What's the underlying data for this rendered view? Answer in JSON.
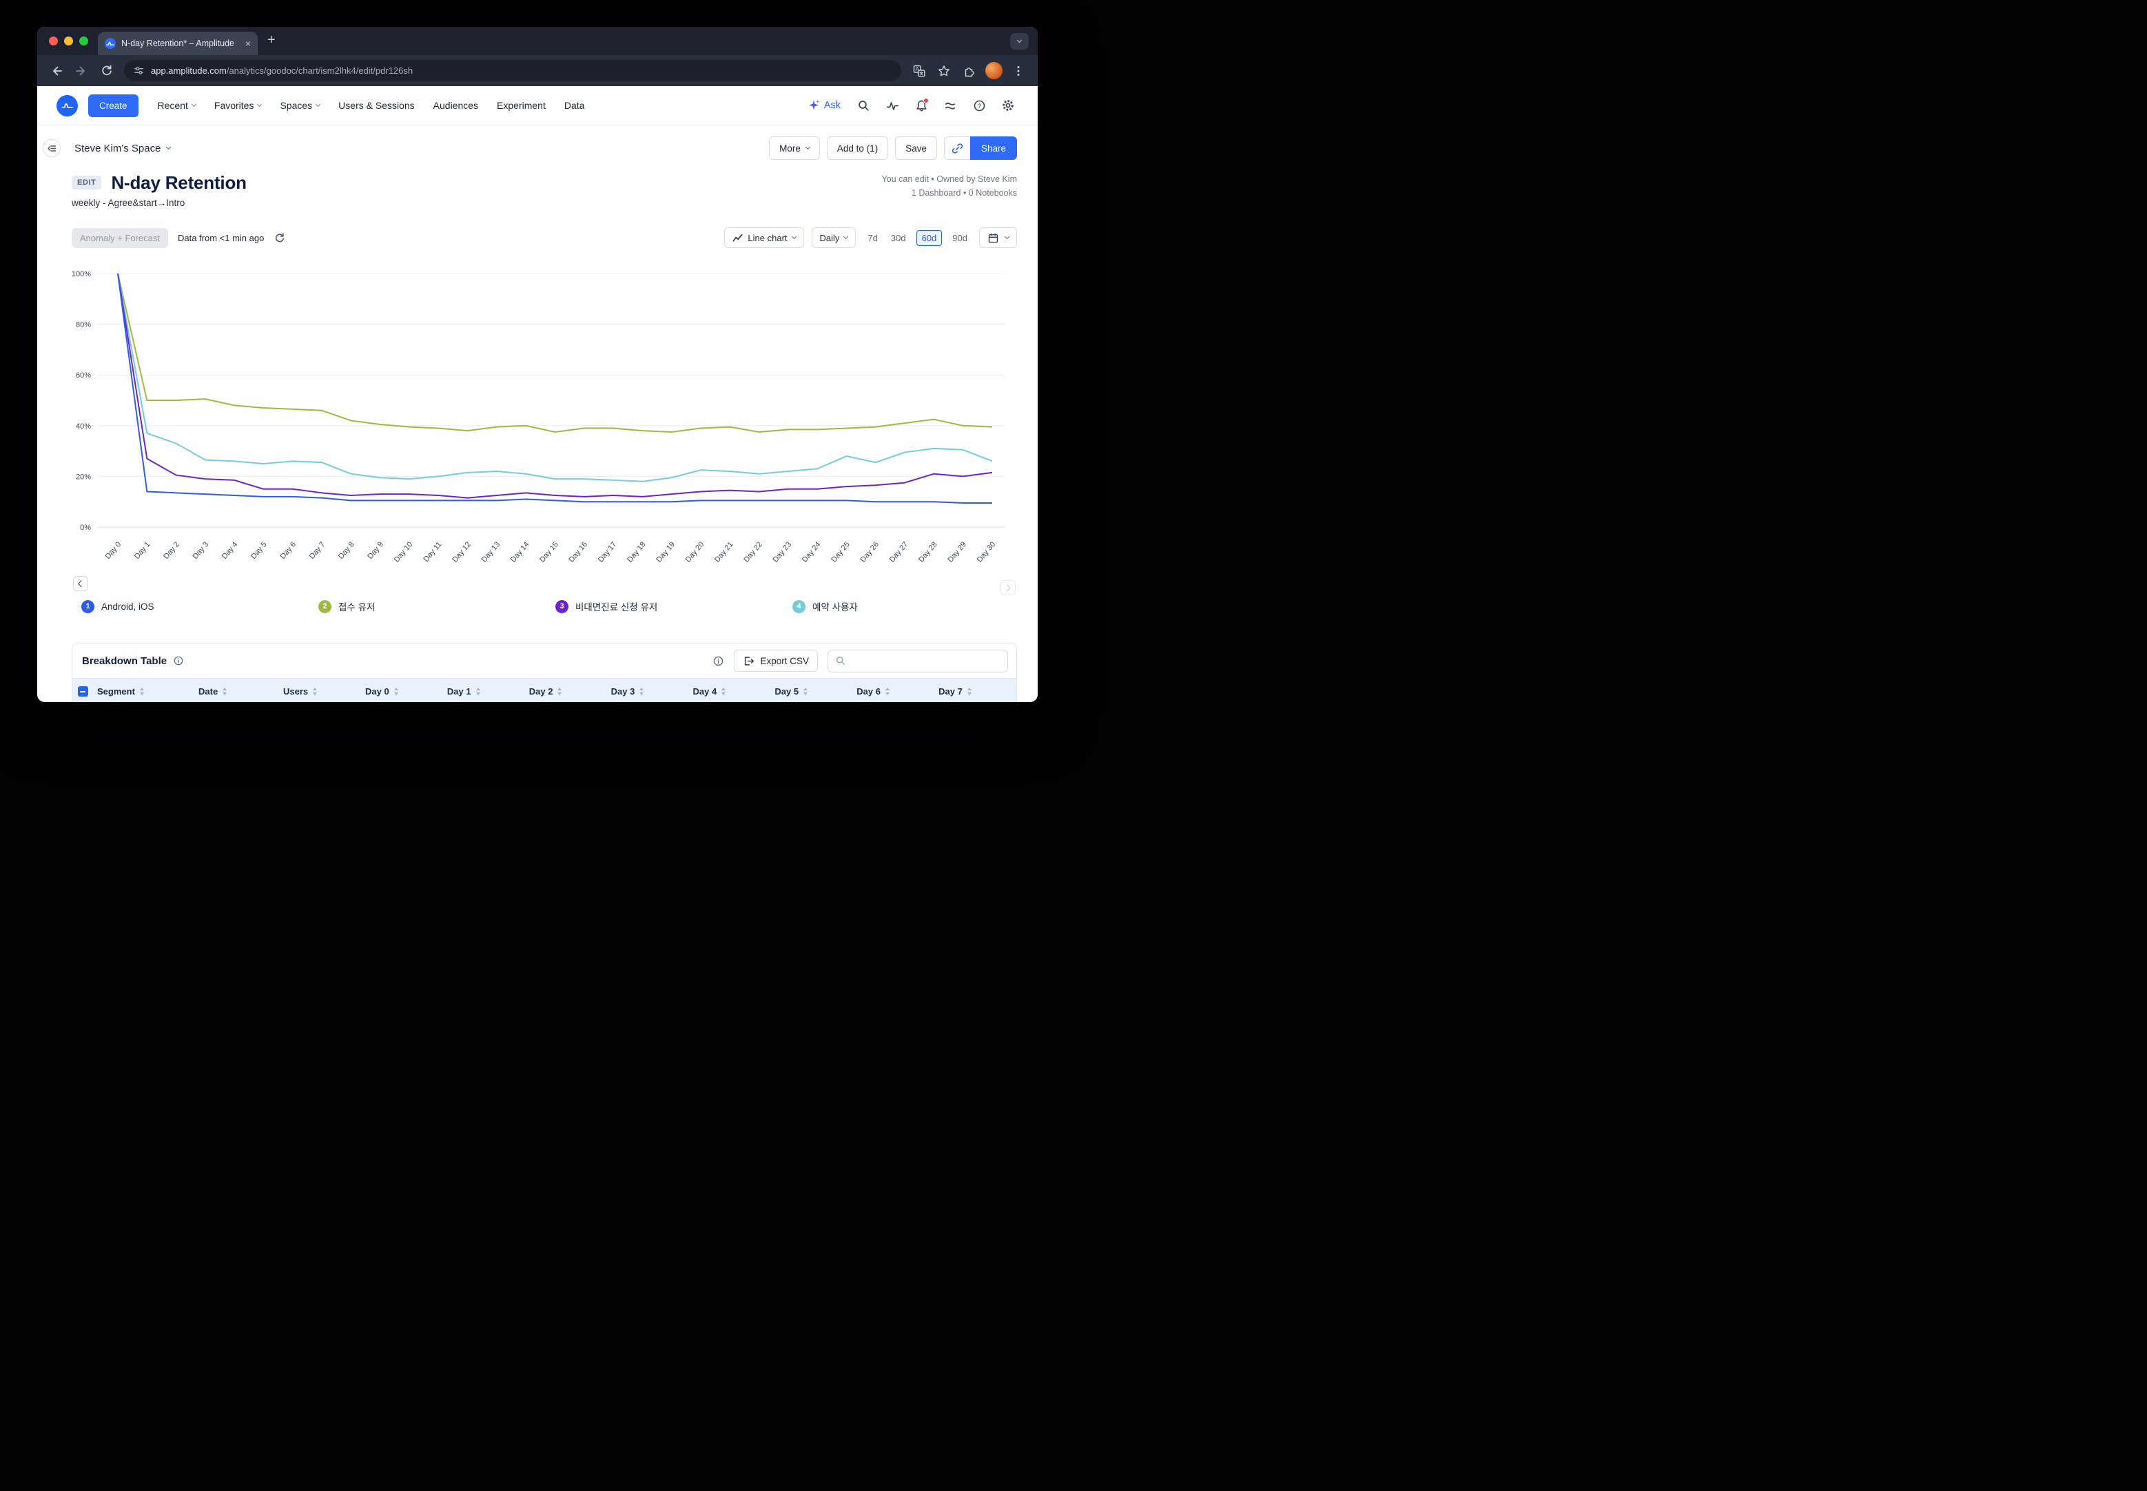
{
  "browser": {
    "tab_title": "N-day Retention* – Amplitude",
    "url_domain": "app.amplitude.com",
    "url_path": "/analytics/goodoc/chart/ism2lhk4/edit/pdr126sh"
  },
  "nav": {
    "create_label": "Create",
    "items": [
      {
        "label": "Recent",
        "dropdown": true
      },
      {
        "label": "Favorites",
        "dropdown": true
      },
      {
        "label": "Spaces",
        "dropdown": true
      },
      {
        "label": "Users & Sessions",
        "dropdown": false
      },
      {
        "label": "Audiences",
        "dropdown": false
      },
      {
        "label": "Experiment",
        "dropdown": false
      },
      {
        "label": "Data",
        "dropdown": false
      }
    ],
    "ask_label": "Ask"
  },
  "toolbar": {
    "space_name": "Steve Kim's Space",
    "more_label": "More",
    "add_to_label": "Add to (1)",
    "save_label": "Save",
    "share_label": "Share"
  },
  "page": {
    "edit_badge": "EDIT",
    "title": "N-day Retention",
    "subtitle": "weekly - Agree&start→Intro",
    "permissions": "You can edit • Owned by Steve Kim",
    "usage": "1 Dashboard • 0 Notebooks"
  },
  "controls": {
    "anomaly_label": "Anomaly + Forecast",
    "freshness": "Data from <1 min ago",
    "chart_type": "Line chart",
    "granularity": "Daily",
    "ranges": [
      "7d",
      "30d",
      "60d",
      "90d"
    ],
    "selected_range": "60d"
  },
  "chart_data": {
    "type": "line",
    "title": "N-day Retention",
    "x": [
      "Day 0",
      "Day 1",
      "Day 2",
      "Day 3",
      "Day 4",
      "Day 5",
      "Day 6",
      "Day 7",
      "Day 8",
      "Day 9",
      "Day 10",
      "Day 11",
      "Day 12",
      "Day 13",
      "Day 14",
      "Day 15",
      "Day 16",
      "Day 17",
      "Day 18",
      "Day 19",
      "Day 20",
      "Day 21",
      "Day 22",
      "Day 23",
      "Day 24",
      "Day 25",
      "Day 26",
      "Day 27",
      "Day 28",
      "Day 29",
      "Day 30"
    ],
    "ylim": [
      0,
      100
    ],
    "yticks": [
      0,
      20,
      40,
      60,
      80,
      100
    ],
    "ytick_suffix": "%",
    "grid": "horizontal",
    "legend_position": "bottom",
    "series": [
      {
        "name": "Android, iOS",
        "color": "#2e5ce6",
        "values": [
          100,
          14,
          13.5,
          13,
          12.5,
          12,
          12,
          11.5,
          10.5,
          10.5,
          10.5,
          10.5,
          10.5,
          10.5,
          11,
          10.5,
          10,
          10,
          10,
          10,
          10.5,
          10.5,
          10.5,
          10.5,
          10.5,
          10.5,
          10,
          10,
          10,
          9.5,
          9.5
        ]
      },
      {
        "name": "접수 유저",
        "color": "#9cba40",
        "values": [
          100,
          50,
          50,
          50.5,
          48,
          47,
          46.5,
          46,
          42,
          40.5,
          39.5,
          39,
          38,
          39.5,
          40,
          37.5,
          39,
          39,
          38,
          37.5,
          39,
          39.5,
          37.5,
          38.5,
          38.5,
          39,
          39.5,
          41,
          42.5,
          40,
          39.5
        ]
      },
      {
        "name": "비대면진료 신청 유저",
        "color": "#6b24c8",
        "values": [
          100,
          27,
          20.5,
          19,
          18.5,
          15,
          15,
          13.5,
          12.5,
          13,
          13,
          12.5,
          11.5,
          12.5,
          13.5,
          12.5,
          12,
          12.5,
          12,
          13,
          14,
          14.5,
          14,
          15,
          15,
          16,
          16.5,
          17.5,
          21,
          20,
          21.5
        ]
      },
      {
        "name": "예약 사용자",
        "color": "#74ccd9",
        "values": [
          100,
          37,
          33,
          26.5,
          26,
          25,
          26,
          25.5,
          21,
          19.5,
          19,
          20,
          21.5,
          22,
          21,
          19,
          19,
          18.5,
          18,
          19.5,
          22.5,
          22,
          21,
          22,
          23,
          28,
          25.5,
          29.5,
          31,
          30.5,
          26
        ]
      }
    ]
  },
  "table": {
    "title": "Breakdown Table",
    "export_label": "Export CSV",
    "columns": [
      "Segment",
      "Date",
      "Users",
      "Day 0",
      "Day 1",
      "Day 2",
      "Day 3",
      "Day 4",
      "Day 5",
      "Day 6",
      "Day 7"
    ]
  }
}
